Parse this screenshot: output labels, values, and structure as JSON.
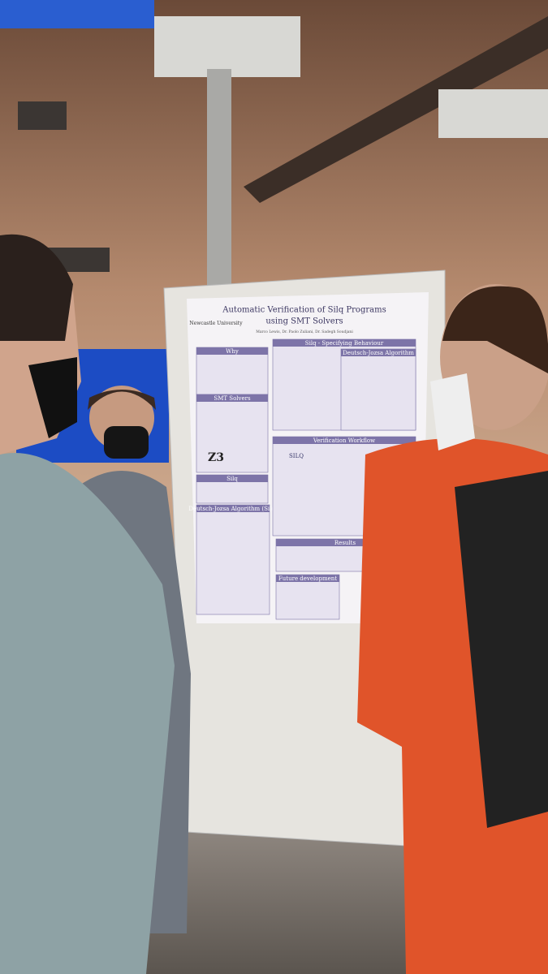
{
  "poster": {
    "title": [
      "Automatic Verification of Silq Programs",
      "using SMT Solvers"
    ],
    "university": "Newcastle University",
    "authors": "Marco Lewis, Dr. Paolo Zuliani, Dr. Sadegh Soudjani",
    "sections": [
      "Why",
      "SMT Solvers",
      "Silq",
      "Deutsch-Jozsa Algorithm (Silq)",
      "Silq - Specifying Behaviour",
      "Deutsch-Jozsa Algorithm",
      "Verification Workflow",
      "Results",
      "Future development"
    ],
    "logos": [
      "Z3",
      "SILQ"
    ]
  }
}
